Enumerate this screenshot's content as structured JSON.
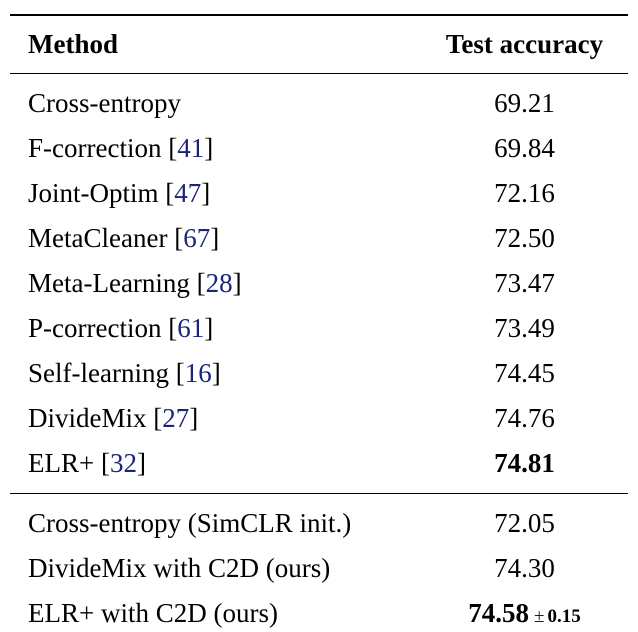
{
  "table": {
    "citation_color": "#1a2578",
    "citation_open": "[",
    "citation_close": "]",
    "columns": [
      "Method",
      "Test accuracy"
    ],
    "sections": [
      {
        "name": "prior-methods",
        "rows": [
          {
            "method": "Cross-entropy",
            "accuracy": "69.21"
          },
          {
            "method": "F-correction",
            "citation": "41",
            "accuracy": "69.84"
          },
          {
            "method": "Joint-Optim",
            "citation": "47",
            "accuracy": "72.16"
          },
          {
            "method": "MetaCleaner",
            "citation": "67",
            "accuracy": "72.50"
          },
          {
            "method": "Meta-Learning",
            "citation": "28",
            "accuracy": "73.47"
          },
          {
            "method": "P-correction",
            "citation": "61",
            "accuracy": "73.49"
          },
          {
            "method": "Self-learning",
            "citation": "16",
            "accuracy": "74.45"
          },
          {
            "method": "DivideMix",
            "citation": "27",
            "accuracy": "74.76"
          },
          {
            "method": "ELR+",
            "citation": "32",
            "accuracy": "74.81",
            "bold": true
          }
        ]
      },
      {
        "name": "ours-methods",
        "rows": [
          {
            "method": "Cross-entropy (SimCLR init.)",
            "accuracy": "72.05"
          },
          {
            "method": "DivideMix with C2D (ours)",
            "accuracy": "74.30"
          },
          {
            "method": "ELR+ with C2D (ours)",
            "accuracy": "74.58",
            "plus_minus": "±",
            "std": "0.15",
            "bold": true
          }
        ]
      }
    ]
  }
}
